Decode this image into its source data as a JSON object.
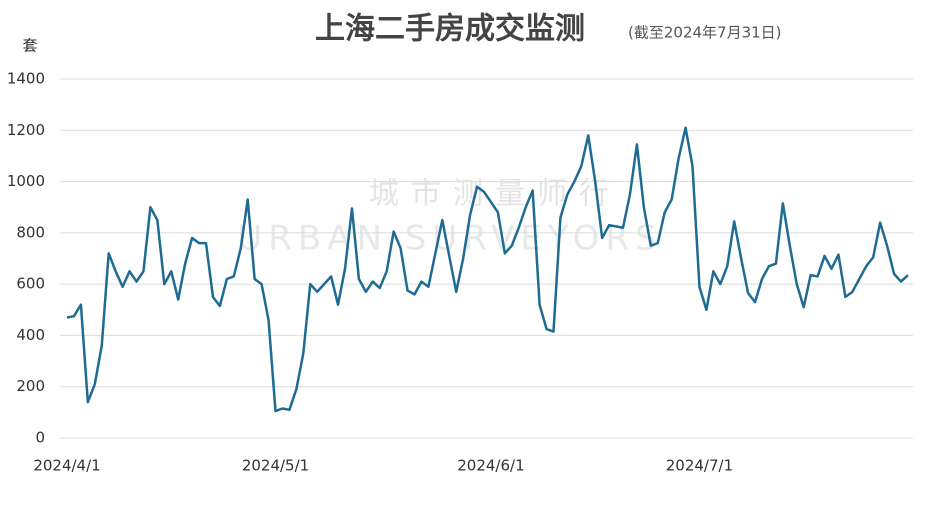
{
  "chart_data": {
    "type": "line",
    "title": "上海二手房成交监测",
    "subtitle": "(截至2024年7月31日)",
    "y_label": "套",
    "watermark": [
      "城市测量师行",
      "URBAN SURVEYORS"
    ],
    "categories": [
      "2024/4/1",
      null,
      null,
      null,
      null,
      null,
      null,
      null,
      null,
      null,
      null,
      null,
      null,
      null,
      null,
      null,
      null,
      null,
      null,
      null,
      null,
      null,
      null,
      null,
      null,
      null,
      null,
      null,
      null,
      null,
      "2024/5/1",
      null,
      null,
      null,
      null,
      null,
      null,
      null,
      null,
      null,
      null,
      null,
      null,
      null,
      null,
      null,
      null,
      null,
      null,
      null,
      null,
      null,
      null,
      null,
      null,
      null,
      null,
      null,
      null,
      null,
      null,
      "2024/6/1",
      null,
      null,
      null,
      null,
      null,
      null,
      null,
      null,
      null,
      null,
      null,
      null,
      null,
      null,
      null,
      null,
      null,
      null,
      null,
      null,
      null,
      null,
      null,
      null,
      null,
      null,
      null,
      null,
      null,
      "2024/7/1",
      null,
      null,
      null,
      null,
      null,
      null,
      null,
      null,
      null,
      null,
      null,
      null,
      null,
      null,
      null,
      null,
      null,
      null,
      null,
      null,
      null,
      null,
      null,
      null,
      null,
      null,
      null,
      null,
      null,
      null
    ],
    "series": [
      {
        "color": "#1f6b94",
        "values": [
          470,
          475,
          520,
          140,
          210,
          360,
          720,
          650,
          590,
          650,
          610,
          650,
          900,
          850,
          600,
          650,
          540,
          680,
          780,
          760,
          760,
          550,
          515,
          620,
          630,
          740,
          930,
          620,
          600,
          460,
          105,
          115,
          110,
          190,
          330,
          600,
          570,
          600,
          630,
          520,
          660,
          895,
          620,
          570,
          610,
          585,
          650,
          805,
          740,
          575,
          560,
          610,
          590,
          720,
          850,
          710,
          570,
          700,
          870,
          980,
          960,
          920,
          880,
          720,
          750,
          820,
          900,
          965,
          520,
          425,
          415,
          860,
          950,
          1000,
          1060,
          1180,
          1000,
          780,
          830,
          825,
          820,
          950,
          1145,
          900,
          750,
          760,
          880,
          930,
          1090,
          1210,
          1060,
          590,
          500,
          650,
          600,
          670,
          845,
          700,
          565,
          530,
          620,
          670,
          680,
          915,
          750,
          600,
          510,
          635,
          630,
          710,
          660,
          715,
          550,
          570,
          620,
          670,
          705,
          840,
          750,
          640,
          610,
          635
        ]
      }
    ],
    "ylim": [
      0,
      1400
    ],
    "yticks": [
      0,
      200,
      400,
      600,
      800,
      1000,
      1200,
      1400
    ],
    "grid": true
  }
}
